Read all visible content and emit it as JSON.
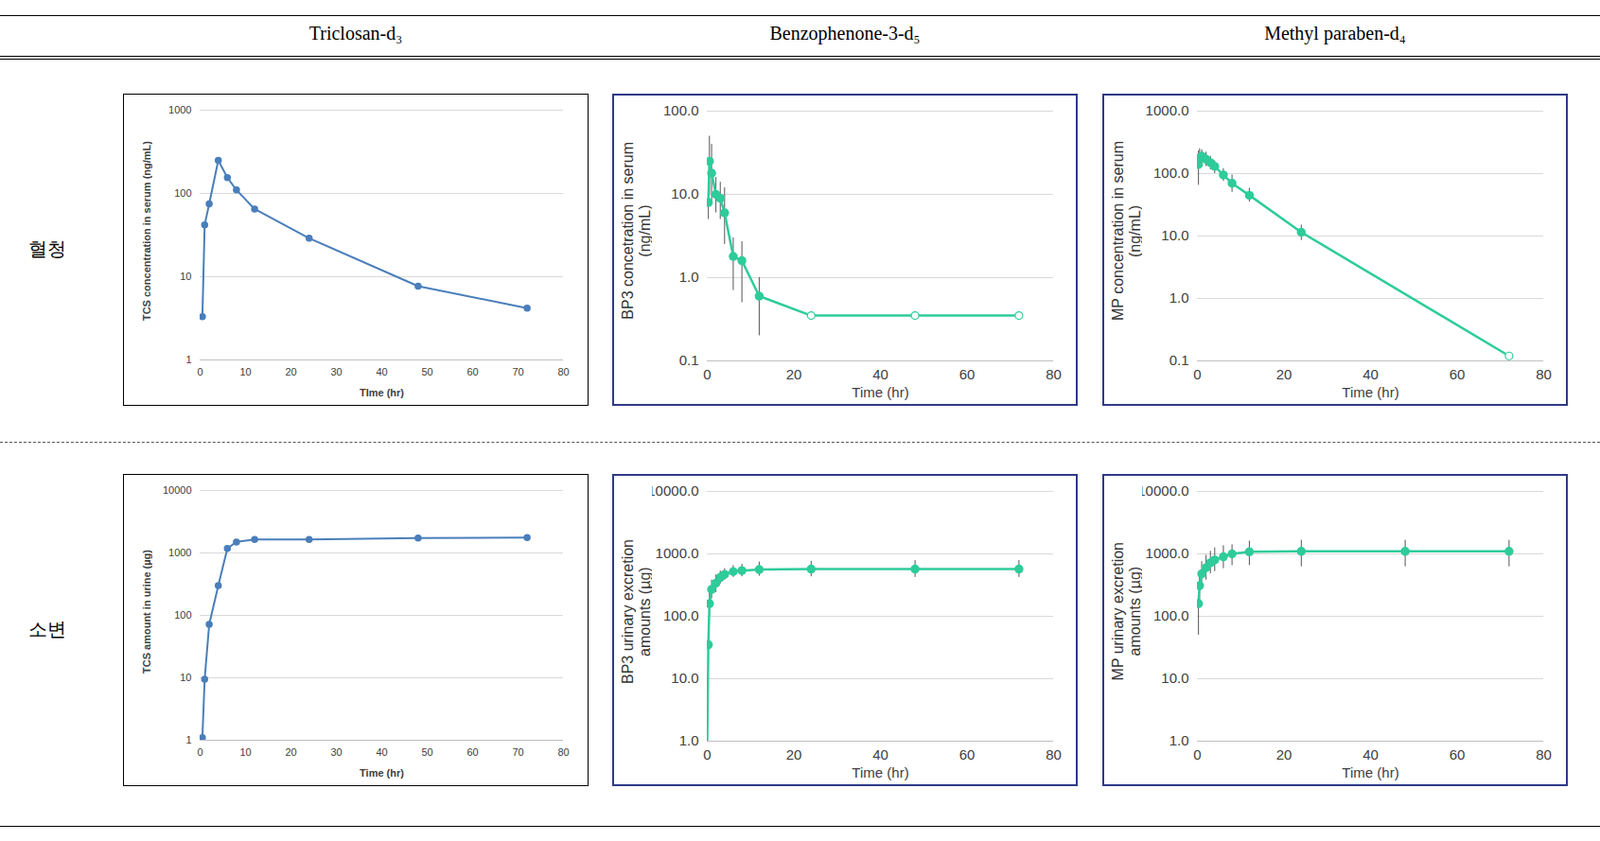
{
  "column_headers": [
    "Triclosan-d₃",
    "Benzophenone-3-d₅",
    "Methyl paraben-d₄"
  ],
  "row_labels": [
    "혈청",
    "소변"
  ],
  "chart_data": [
    {
      "type": "line",
      "log": "y",
      "grid": true,
      "color": "#4a7ebb",
      "marker": "circle",
      "x_label": "TIme (hr)",
      "y_label": "TCS concentration in serum (ng/mL)",
      "xlim": [
        0,
        80
      ],
      "xticks": [
        0,
        10,
        20,
        30,
        40,
        50,
        60,
        70,
        80
      ],
      "ylim": [
        1,
        1000
      ],
      "yticks": [
        1,
        10,
        100,
        1000
      ],
      "x": [
        0.5,
        1,
        2,
        4,
        6,
        8,
        12,
        24,
        48,
        72
      ],
      "values": [
        3.3,
        42,
        75,
        250,
        155,
        110,
        65,
        29,
        7.7,
        4.2
      ]
    },
    {
      "type": "line",
      "log": "y",
      "grid": true,
      "color": "#2ecc9a",
      "marker": "circle",
      "x_label": "Time (hr)",
      "y_label": "BP3 concetration in serum\n(ng/mL)",
      "xlim": [
        0,
        80
      ],
      "xticks": [
        0,
        20,
        40,
        60,
        80
      ],
      "ylim": [
        0.1,
        100
      ],
      "yticks": [
        {
          "value": 0.1,
          "label": "0.1"
        },
        {
          "value": 1,
          "label": "1.0"
        },
        {
          "value": 10,
          "label": "10.0"
        },
        {
          "value": 100,
          "label": "100.0"
        }
      ],
      "x": [
        0.25,
        0.5,
        1,
        2,
        3,
        4,
        6,
        8,
        12,
        24,
        48,
        72
      ],
      "values": [
        8,
        25,
        18,
        10,
        9,
        6,
        1.8,
        1.6,
        0.6,
        0.35,
        0.35,
        0.35
      ],
      "error_low": [
        5,
        10,
        8,
        6,
        5,
        2.5,
        0.7,
        0.5,
        0.2,
        null,
        null,
        null
      ],
      "error_high": [
        12,
        50,
        40,
        16,
        14,
        12,
        3,
        2.7,
        1.0,
        null,
        null,
        null
      ],
      "markers": [
        "circle",
        "circle",
        "circle",
        "circle",
        "circle",
        "circle",
        "circle",
        "circle",
        "circle",
        "open_circle",
        "open_circle",
        "open_circle"
      ]
    },
    {
      "type": "line",
      "log": "y",
      "grid": true,
      "color": "#2ecc9a",
      "marker": "circle",
      "x_label": "Time (hr)",
      "y_label": "MP concentration in serum\n(ng/mL)",
      "xlim": [
        0,
        80
      ],
      "xticks": [
        0,
        20,
        40,
        60,
        80
      ],
      "ylim": [
        0.1,
        1000
      ],
      "yticks": [
        {
          "value": 0.1,
          "label": "0.1"
        },
        {
          "value": 1,
          "label": "1.0"
        },
        {
          "value": 10,
          "label": "10.0"
        },
        {
          "value": 100,
          "label": "100.0"
        },
        {
          "value": 1000,
          "label": "1000.0"
        }
      ],
      "x": [
        0.25,
        0.5,
        1,
        2,
        3,
        4,
        6,
        8,
        12,
        24,
        72
      ],
      "values": [
        140,
        180,
        190,
        170,
        150,
        130,
        95,
        70,
        45,
        11.5,
        0.12
      ],
      "error_low": [
        65,
        120,
        140,
        130,
        115,
        100,
        75,
        50,
        35,
        8.5,
        null
      ],
      "error_high": [
        230,
        250,
        240,
        220,
        190,
        160,
        120,
        95,
        58,
        15,
        null
      ],
      "markers": [
        "circle",
        "circle",
        "circle",
        "circle",
        "circle",
        "circle",
        "circle",
        "circle",
        "circle",
        "circle",
        "open_circle"
      ]
    },
    {
      "type": "line",
      "log": "y",
      "grid": true,
      "color": "#4a7ebb",
      "marker": "circle",
      "x_label": "Time (hr)",
      "y_label": "TCS amount in urine (µg)",
      "xlim": [
        0,
        80
      ],
      "xticks": [
        0,
        10,
        20,
        30,
        40,
        50,
        60,
        70,
        80
      ],
      "ylim": [
        1,
        10000
      ],
      "yticks": [
        1,
        10,
        100,
        1000,
        10000
      ],
      "x": [
        0.5,
        1,
        2,
        4,
        6,
        8,
        12,
        24,
        48,
        72
      ],
      "values": [
        1.1,
        9.5,
        72,
        300,
        1180,
        1500,
        1650,
        1650,
        1730,
        1760
      ]
    },
    {
      "type": "line",
      "log": "y",
      "grid": true,
      "color": "#2ecc9a",
      "marker": "circle",
      "x_label": "Time (hr)",
      "y_label": "BP3 urinary excretion\namounts (µg)",
      "xlim": [
        0,
        80
      ],
      "xticks": [
        0,
        20,
        40,
        60,
        80
      ],
      "ylim": [
        1,
        10000
      ],
      "yticks": [
        {
          "value": 1,
          "label": "1.0"
        },
        {
          "value": 10,
          "label": "10.0"
        },
        {
          "value": 100,
          "label": "100.0"
        },
        {
          "value": 1000,
          "label": "1000.0"
        },
        {
          "value": 10000,
          "label": "10000.0"
        }
      ],
      "x": [
        0,
        0.25,
        0.5,
        1,
        2,
        3,
        4,
        6,
        8,
        12,
        24,
        48,
        72
      ],
      "values": [
        1,
        35,
        160,
        270,
        340,
        420,
        470,
        520,
        540,
        560,
        570,
        570,
        570
      ],
      "error_low": [
        null,
        null,
        100,
        190,
        240,
        330,
        380,
        420,
        430,
        440,
        430,
        420,
        420
      ],
      "error_high": [
        null,
        null,
        240,
        380,
        460,
        530,
        580,
        650,
        680,
        740,
        760,
        780,
        780
      ],
      "markers": [
        "none",
        "circle",
        "circle",
        "circle",
        "circle",
        "circle",
        "circle",
        "circle",
        "circle",
        "circle",
        "circle",
        "circle",
        "circle"
      ]
    },
    {
      "type": "line",
      "log": "y",
      "grid": true,
      "color": "#2ecc9a",
      "marker": "circle",
      "x_label": "Time (hr)",
      "y_label": "MP urinary excretion\namounts (µg)",
      "xlim": [
        0,
        80
      ],
      "xticks": [
        0,
        20,
        40,
        60,
        80
      ],
      "ylim": [
        1,
        10000
      ],
      "yticks": [
        {
          "value": 1,
          "label": "1.0"
        },
        {
          "value": 10,
          "label": "10.0"
        },
        {
          "value": 100,
          "label": "100.0"
        },
        {
          "value": 1000,
          "label": "1000.0"
        },
        {
          "value": 10000,
          "label": "10000.0"
        }
      ],
      "x": [
        0.25,
        0.5,
        1,
        2,
        3,
        4,
        6,
        8,
        12,
        24,
        48,
        72
      ],
      "values": [
        160,
        310,
        480,
        600,
        720,
        800,
        900,
        1000,
        1080,
        1100,
        1100,
        1100
      ],
      "error_low": [
        50,
        180,
        300,
        380,
        480,
        520,
        580,
        650,
        650,
        620,
        620,
        620
      ],
      "error_high": [
        240,
        500,
        750,
        950,
        1100,
        1250,
        1350,
        1400,
        1600,
        1650,
        1650,
        1650
      ]
    }
  ]
}
